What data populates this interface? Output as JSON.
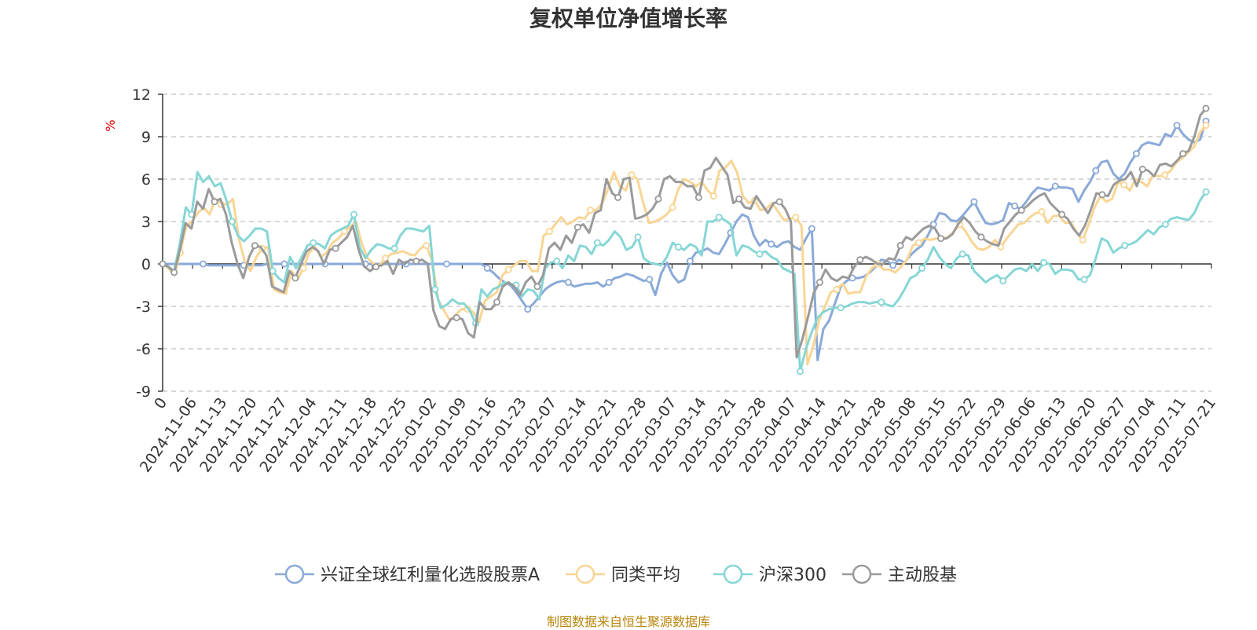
{
  "page": {
    "title": "复权单位净值增长率",
    "footer": "制图数据来自恒生聚源数据库"
  },
  "chart_data": {
    "type": "line",
    "title": "复权单位净值增长率",
    "ylabel": "%",
    "ylabel_color": "#e00000",
    "ylim": [
      -9,
      12
    ],
    "yticks": [
      12,
      9,
      6,
      3,
      0,
      -3,
      -6,
      -9
    ],
    "grid": true,
    "legend_position": "bottom-center",
    "x_tick_labels": [
      "0",
      "2024-11-06",
      "2024-11-13",
      "2024-11-20",
      "2024-11-27",
      "2024-12-04",
      "2024-12-11",
      "2024-12-18",
      "2024-12-25",
      "2025-01-02",
      "2025-01-09",
      "2025-01-16",
      "2025-01-23",
      "2025-02-07",
      "2025-02-14",
      "2025-02-21",
      "2025-02-28",
      "2025-03-07",
      "2025-03-14",
      "2025-03-21",
      "2025-03-28",
      "2025-04-07",
      "2025-04-14",
      "2025-04-21",
      "2025-04-28",
      "2025-05-08",
      "2025-05-15",
      "2025-05-22",
      "2025-05-29",
      "2025-06-06",
      "2025-06-13",
      "2025-06-20",
      "2025-06-27",
      "2025-07-04",
      "2025-07-11",
      "2025-07-21"
    ],
    "series": [
      {
        "name": "兴证全球红利量化选股股票A",
        "color": "#8aa9d8",
        "values": [
          0,
          0,
          0,
          0,
          0,
          0,
          0,
          0,
          -0.1,
          -0.1,
          -0.1,
          -0.1,
          -0.1,
          -0.1,
          -0.1,
          -0.1,
          -0.1,
          -0.1,
          0,
          0,
          0,
          0,
          0,
          0,
          0,
          0,
          0,
          0,
          0,
          0,
          0,
          0,
          0,
          0,
          0,
          0,
          0,
          0,
          0,
          0,
          0,
          0,
          0,
          0,
          0,
          0,
          0,
          0,
          0,
          0,
          0,
          0,
          0,
          0,
          0,
          0,
          -0.3,
          -0.6,
          -1.0,
          -1.3,
          -1.5,
          -2.0,
          -2.6,
          -3.2,
          -2.8,
          -2.3,
          -1.8,
          -1.5,
          -1.3,
          -1.2,
          -1.3,
          -1.6,
          -1.5,
          -1.4,
          -1.4,
          -1.3,
          -1.6,
          -1.3,
          -1.0,
          -0.9,
          -0.7,
          -0.8,
          -1.0,
          -1.2,
          -1.1,
          -2.2,
          -0.7,
          0.1,
          -0.8,
          -1.3,
          -1.1,
          0.2,
          0.8,
          0.9,
          1.1,
          0.8,
          0.7,
          1.4,
          2.2,
          3.0,
          3.5,
          3.3,
          2.0,
          1.3,
          1.7,
          1.4,
          1.2,
          1.5,
          1.6,
          1.2,
          1.0,
          1.8,
          2.5,
          -6.8,
          -4.6,
          -4.0,
          -2.8,
          -1.6,
          -1.2,
          -1.0,
          -1.0,
          -0.9,
          -0.6,
          -0.2,
          0.3,
          0.2,
          -0.1,
          0.3,
          0.1,
          0.6,
          1.0,
          1.3,
          2.0,
          2.8,
          3.6,
          3.5,
          3.1,
          3.0,
          3.4,
          3.9,
          4.4,
          3.6,
          2.9,
          2.8,
          2.9,
          3.1,
          4.3,
          4.1,
          3.9,
          4.4,
          5.0,
          5.4,
          5.3,
          5.2,
          5.5,
          5.4,
          5.4,
          5.3,
          4.4,
          5.2,
          5.8,
          6.6,
          7.2,
          7.3,
          6.4,
          6.0,
          6.4,
          7.2,
          7.8,
          8.4,
          8.6,
          8.5,
          8.4,
          9.2,
          9.0,
          9.8,
          9.2,
          8.8,
          8.6,
          8.8,
          10.1
        ]
      },
      {
        "name": "同类平均",
        "color": "#f9d594",
        "values": [
          0,
          -0.3,
          -0.8,
          0.8,
          2.6,
          3.0,
          3.6,
          4.0,
          3.5,
          4.6,
          4.2,
          4.2,
          4.6,
          1.8,
          0.2,
          -0.5,
          0.5,
          1.1,
          1.2,
          -1.8,
          -2.0,
          -2.1,
          -0.5,
          -1.1,
          -0.3,
          0.8,
          1.2,
          0.5,
          0.8,
          1.5,
          1.8,
          2.3,
          2.6,
          3.0,
          1.4,
          0.4,
          0.0,
          -0.1,
          0.4,
          0.7,
          0.8,
          0.9,
          0.7,
          0.6,
          1.1,
          1.3,
          0.2,
          -2.5,
          -3.3,
          -4.0,
          -3.6,
          -3.2,
          -3.2,
          -3.4,
          -4.1,
          -2.6,
          -2.3,
          -2.0,
          -0.8,
          -0.4,
          -0.1,
          0.2,
          0.2,
          -0.5,
          -0.5,
          2.0,
          2.3,
          2.8,
          3.3,
          2.8,
          3.0,
          3.3,
          3.2,
          3.8,
          3.8,
          4.3,
          5.3,
          6.5,
          5.5,
          5.2,
          6.3,
          6.0,
          4.3,
          2.9,
          3.0,
          3.2,
          3.5,
          4.0,
          5.3,
          6.0,
          5.8,
          5.5,
          5.8,
          5.2,
          4.8,
          6.6,
          6.8,
          7.3,
          6.5,
          4.8,
          4.3,
          4.5,
          3.8,
          3.9,
          4.3,
          3.7,
          3.1,
          3.2,
          3.3,
          2.7,
          -7.1,
          -5.8,
          -4.0,
          -3.0,
          -2.0,
          -1.8,
          -1.4,
          -2.1,
          -2.0,
          -2.0,
          -0.9,
          -0.3,
          0.0,
          -0.4,
          -0.4,
          -0.6,
          -0.2,
          0.3,
          1.3,
          1.5,
          1.8,
          1.7,
          1.8,
          1.8,
          1.9,
          2.3,
          2.8,
          2.3,
          1.6,
          1.1,
          1.0,
          1.2,
          1.7,
          1.2,
          1.8,
          2.3,
          2.8,
          2.9,
          3.3,
          3.6,
          3.7,
          2.9,
          3.4,
          3.4,
          2.9,
          2.9,
          2.2,
          1.7,
          2.8,
          4.0,
          4.8,
          4.4,
          4.6,
          5.8,
          5.6,
          5.2,
          6.0,
          5.8,
          5.5,
          6.3,
          6.2,
          6.3,
          6.6,
          7.2,
          7.5,
          7.9,
          8.3,
          9.3,
          9.8
        ]
      },
      {
        "name": "沪深300",
        "color": "#86d6d6",
        "values": [
          0,
          -0.2,
          -0.5,
          1.5,
          4.0,
          3.5,
          6.5,
          5.8,
          6.2,
          5.5,
          5.7,
          4.5,
          3.0,
          2.0,
          1.6,
          2.0,
          2.5,
          2.5,
          2.3,
          -0.5,
          -1.0,
          -1.3,
          0.5,
          -0.3,
          0.5,
          1.3,
          1.5,
          1.4,
          1.1,
          2.0,
          2.3,
          2.5,
          2.7,
          3.5,
          1.2,
          0.4,
          1.0,
          1.4,
          1.3,
          1.1,
          1.1,
          2.0,
          2.5,
          2.5,
          2.4,
          2.3,
          2.7,
          -1.8,
          -3.1,
          -2.9,
          -2.5,
          -2.8,
          -2.8,
          -3.3,
          -4.2,
          -1.8,
          -2.3,
          -1.8,
          -1.6,
          -1.3,
          -1.4,
          -1.5,
          -2.3,
          -1.8,
          -1.9,
          -2.5,
          -0.3,
          0.1,
          0.2,
          -0.3,
          0.6,
          0.2,
          1.3,
          1.2,
          0.7,
          1.5,
          1.3,
          1.7,
          2.3,
          1.9,
          1.0,
          1.2,
          1.9,
          0.4,
          0.1,
          0.0,
          -0.1,
          0.5,
          1.5,
          1.2,
          1.0,
          1.4,
          1.2,
          0.6,
          3.0,
          3.0,
          3.3,
          3.1,
          2.8,
          0.6,
          1.3,
          1.2,
          0.9,
          0.7,
          0.9,
          0.5,
          0.3,
          -0.3,
          -0.5,
          -0.7,
          -7.6,
          -6.0,
          -4.8,
          -3.8,
          -3.4,
          -3.2,
          -3.1,
          -3.1,
          -3.0,
          -2.8,
          -2.7,
          -2.7,
          -2.8,
          -2.7,
          -2.7,
          -2.9,
          -3.0,
          -2.5,
          -1.8,
          -1.0,
          -0.8,
          -0.3,
          0.3,
          1.2,
          0.5,
          0.0,
          -0.3,
          0.4,
          0.7,
          0.6,
          -0.5,
          -0.9,
          -1.3,
          -1.0,
          -0.8,
          -1.2,
          -0.8,
          -0.4,
          -0.3,
          -0.5,
          0.0,
          -0.5,
          0.1,
          0.0,
          -0.7,
          -0.4,
          -0.4,
          -0.5,
          -1.1,
          -1.1,
          -0.8,
          0.4,
          1.8,
          1.6,
          0.8,
          1.1,
          1.3,
          1.4,
          1.6,
          2.0,
          2.4,
          2.1,
          2.6,
          2.8,
          3.2,
          3.3,
          3.2,
          3.1,
          3.6,
          4.5,
          5.1
        ]
      },
      {
        "name": "主动股基",
        "color": "#9a9a9a",
        "values": [
          0,
          -0.2,
          -0.6,
          1.0,
          2.9,
          2.5,
          4.4,
          3.9,
          5.3,
          4.4,
          4.6,
          3.5,
          1.5,
          0.0,
          -1.0,
          0.5,
          1.3,
          1.2,
          0.6,
          -1.6,
          -1.8,
          -2.0,
          -0.5,
          -1.0,
          0.0,
          0.9,
          1.2,
          0.9,
          0.0,
          1.0,
          1.1,
          1.5,
          1.9,
          2.7,
          1.0,
          -0.2,
          -0.5,
          -0.2,
          -0.1,
          0.2,
          -0.7,
          0.3,
          0.0,
          0.3,
          0.2,
          0.3,
          0.0,
          -3.3,
          -4.4,
          -4.6,
          -3.9,
          -3.8,
          -3.9,
          -4.9,
          -5.2,
          -2.7,
          -3.2,
          -3.2,
          -2.7,
          -1.6,
          -1.3,
          -1.6,
          -2.2,
          -1.3,
          -0.9,
          -1.6,
          -0.8,
          1.1,
          1.5,
          1.0,
          2.0,
          1.5,
          2.6,
          2.8,
          2.2,
          3.6,
          3.8,
          6.0,
          5.0,
          4.7,
          6.0,
          6.1,
          3.2,
          3.3,
          3.5,
          3.9,
          4.6,
          6.0,
          6.2,
          5.8,
          5.8,
          5.5,
          5.5,
          4.7,
          6.6,
          6.8,
          7.5,
          6.9,
          6.3,
          4.3,
          4.6,
          4.0,
          3.9,
          4.8,
          4.2,
          3.6,
          4.3,
          4.4,
          3.9,
          3.0,
          -6.6,
          -5.3,
          -3.7,
          -2.0,
          -1.3,
          -0.4,
          -1.0,
          -1.2,
          -0.9,
          -1.0,
          -0.2,
          0.3,
          0.5,
          0.3,
          0.0,
          0.0,
          0.4,
          0.3,
          1.3,
          1.9,
          1.7,
          2.1,
          2.5,
          2.7,
          2.5,
          1.8,
          1.8,
          2.1,
          2.8,
          3.3,
          2.9,
          2.3,
          1.9,
          1.6,
          1.4,
          1.3,
          2.5,
          3.0,
          3.5,
          3.8,
          4.1,
          4.5,
          4.8,
          5.0,
          4.3,
          3.9,
          3.5,
          3.2,
          2.5,
          2.0,
          2.7,
          3.8,
          5.0,
          4.9,
          4.8,
          5.6,
          5.9,
          6.0,
          6.5,
          5.5,
          6.7,
          6.6,
          6.2,
          7.0,
          7.1,
          6.9,
          7.3,
          7.8,
          8.0,
          9.0,
          10.5,
          11.0
        ]
      }
    ]
  },
  "legend": [
    {
      "label": "兴证全球红利量化选股股票A",
      "color": "#8aa9d8"
    },
    {
      "label": "同类平均",
      "color": "#f9d594"
    },
    {
      "label": "沪深300",
      "color": "#86d6d6"
    },
    {
      "label": "主动股基",
      "color": "#9a9a9a"
    }
  ]
}
